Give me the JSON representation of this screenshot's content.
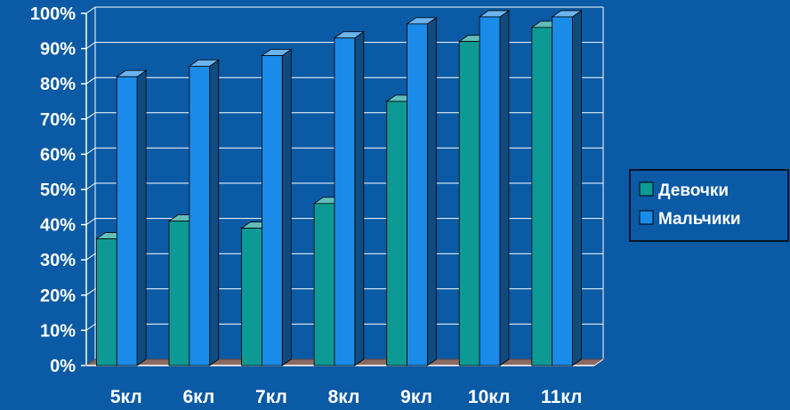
{
  "chart_data": {
    "type": "bar",
    "categories": [
      "5кл",
      "6кл",
      "7кл",
      "8кл",
      "9кл",
      "10кл",
      "11кл"
    ],
    "series": [
      {
        "name": "Девочки",
        "values": [
          36,
          41,
          39,
          46,
          75,
          92,
          96
        ],
        "color": "#0e9a94"
      },
      {
        "name": "Мальчики",
        "values": [
          82,
          85,
          88,
          93,
          97,
          99,
          99
        ],
        "color": "#1a8be8"
      }
    ],
    "yticks": [
      "0%",
      "10%",
      "20%",
      "30%",
      "40%",
      "50%",
      "60%",
      "70%",
      "80%",
      "90%",
      "100%"
    ],
    "ylim": [
      0,
      100
    ],
    "grid": true,
    "legend_position": "right",
    "three_d": true,
    "colors": {
      "background": "#0a5aa5",
      "gridline": "#ffffff",
      "floor": "#8a6a62",
      "text": "#ffffff"
    }
  }
}
